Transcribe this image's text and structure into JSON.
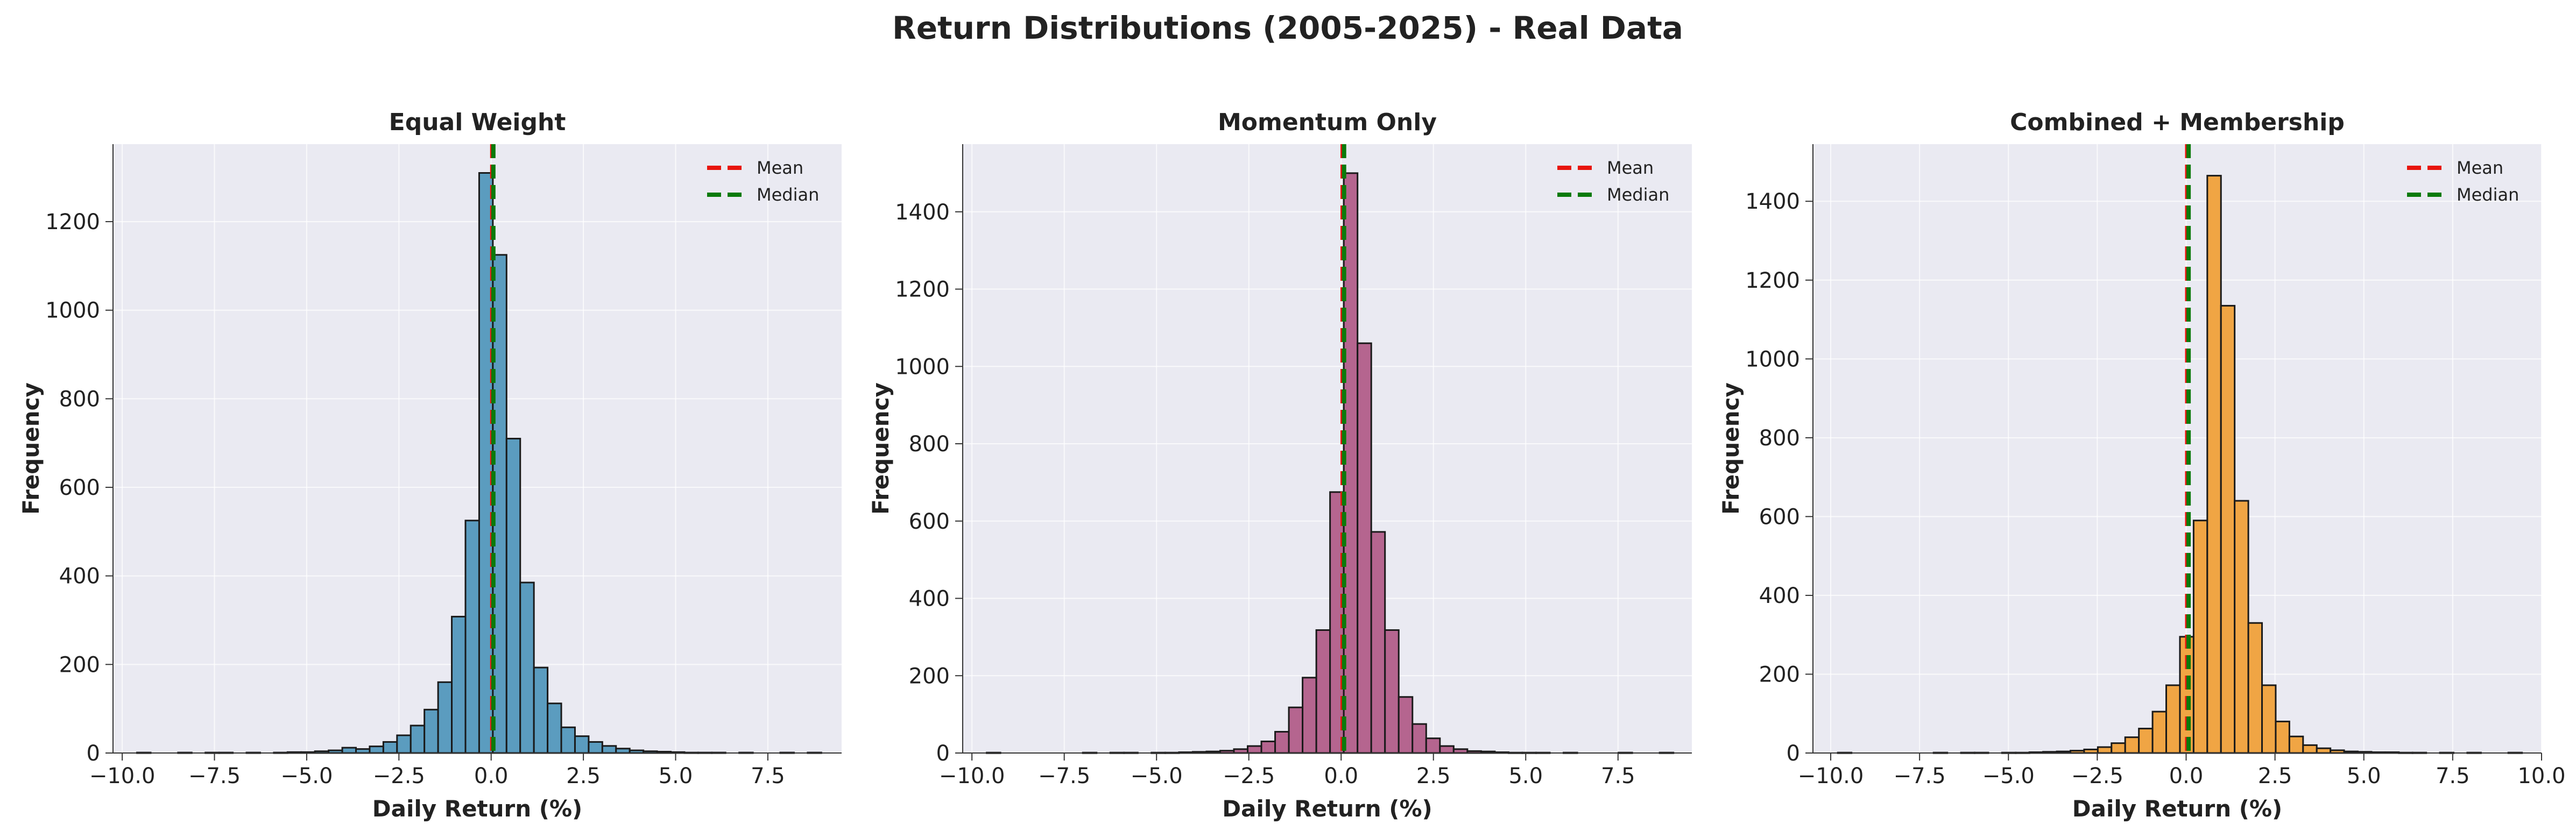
{
  "suptitle": "Return Distributions (2005-2025) - Real Data",
  "chart_data": [
    {
      "type": "bar",
      "title": "Equal Weight",
      "xlabel": "Daily Return (%)",
      "ylabel": "Frequency",
      "color": "#5b9cbf",
      "xlim": [
        -10.25,
        9.5
      ],
      "ylim": [
        0,
        1375
      ],
      "xticks": [
        -10.0,
        -7.5,
        -5.0,
        -2.5,
        0.0,
        2.5,
        5.0,
        7.5
      ],
      "xtick_labels": [
        "−10.0",
        "−7.5",
        "−5.0",
        "−2.5",
        "0.0",
        "2.5",
        "5.0",
        "7.5"
      ],
      "yticks": [
        0,
        200,
        400,
        600,
        800,
        1000,
        1200
      ],
      "ytick_labels": [
        "0",
        "200",
        "400",
        "600",
        "800",
        "1000",
        "1200"
      ],
      "bins": {
        "start": -9.6,
        "width": 0.371,
        "count": 50
      },
      "counts": [
        1,
        0,
        0,
        1,
        0,
        1,
        1,
        0,
        1,
        0,
        1,
        2,
        2,
        4,
        6,
        12,
        9,
        15,
        25,
        40,
        62,
        98,
        160,
        308,
        525,
        1310,
        1125,
        710,
        385,
        193,
        112,
        58,
        38,
        25,
        16,
        10,
        6,
        4,
        3,
        2,
        1,
        1,
        1,
        0,
        1,
        0,
        0,
        1,
        0,
        1
      ],
      "mean": 0.03,
      "median": 0.06,
      "grid": true,
      "legend": {
        "position": "top-right",
        "entries": [
          "Mean",
          "Median"
        ]
      }
    },
    {
      "type": "bar",
      "title": "Momentum Only",
      "xlabel": "Daily Return (%)",
      "ylabel": "Frequency",
      "color": "#b5658f",
      "xlim": [
        -10.25,
        9.5
      ],
      "ylim": [
        0,
        1575
      ],
      "xticks": [
        -10.0,
        -7.5,
        -5.0,
        -2.5,
        0.0,
        2.5,
        5.0,
        7.5
      ],
      "xtick_labels": [
        "−10.0",
        "−7.5",
        "−5.0",
        "−2.5",
        "0.0",
        "2.5",
        "5.0",
        "7.5"
      ],
      "yticks": [
        0,
        200,
        400,
        600,
        800,
        1000,
        1200,
        1400
      ],
      "ytick_labels": [
        "0",
        "200",
        "400",
        "600",
        "800",
        "1000",
        "1200",
        "1400"
      ],
      "bins": {
        "start": -9.6,
        "width": 0.372,
        "count": 50
      },
      "counts": [
        1,
        0,
        0,
        0,
        0,
        0,
        0,
        1,
        0,
        1,
        1,
        0,
        1,
        1,
        2,
        3,
        4,
        6,
        10,
        18,
        30,
        55,
        118,
        195,
        318,
        675,
        1500,
        1060,
        572,
        318,
        145,
        75,
        38,
        18,
        10,
        5,
        4,
        2,
        1,
        1,
        1,
        0,
        1,
        0,
        0,
        0,
        1,
        0,
        0,
        1
      ],
      "mean": 0.04,
      "median": 0.08,
      "grid": true,
      "legend": {
        "position": "top-right",
        "entries": [
          "Mean",
          "Median"
        ]
      }
    },
    {
      "type": "bar",
      "title": "Combined + Membership",
      "xlabel": "Daily Return (%)",
      "ylabel": "Frequency",
      "color": "#f0a544",
      "xlim": [
        -10.5,
        10.0
      ],
      "ylim": [
        0,
        1545
      ],
      "xticks": [
        -10.0,
        -7.5,
        -5.0,
        -2.5,
        0.0,
        2.5,
        5.0,
        7.5,
        10.0
      ],
      "xtick_labels": [
        "−10.0",
        "−7.5",
        "−5.0",
        "−2.5",
        "0.0",
        "2.5",
        "5.0",
        "7.5",
        "10.0"
      ],
      "yticks": [
        0,
        200,
        400,
        600,
        800,
        1000,
        1200,
        1400
      ],
      "ytick_labels": [
        "0",
        "200",
        "400",
        "600",
        "800",
        "1000",
        "1200",
        "1400"
      ],
      "bins": {
        "start": -9.8,
        "width": 0.385,
        "count": 50
      },
      "counts": [
        1,
        0,
        0,
        0,
        0,
        0,
        0,
        1,
        0,
        1,
        1,
        0,
        1,
        1,
        2,
        3,
        4,
        6,
        9,
        15,
        25,
        40,
        62,
        105,
        172,
        295,
        590,
        1465,
        1135,
        640,
        330,
        172,
        80,
        42,
        20,
        12,
        7,
        4,
        3,
        2,
        2,
        1,
        1,
        0,
        1,
        0,
        1,
        0,
        0,
        1
      ],
      "mean": 0.03,
      "median": 0.07,
      "grid": true,
      "legend": {
        "position": "top-right",
        "entries": [
          "Mean",
          "Median"
        ]
      }
    }
  ]
}
